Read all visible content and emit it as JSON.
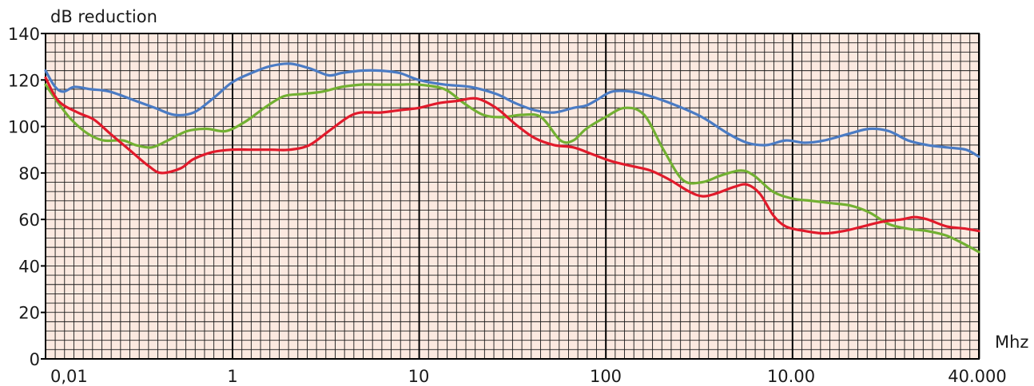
{
  "chart_data": {
    "type": "line",
    "title": "",
    "ylabel": "dB reduction",
    "xlabel": "Mhz",
    "ylim": [
      0,
      140
    ],
    "y_ticks": [
      0,
      20,
      40,
      60,
      80,
      100,
      120,
      140
    ],
    "y_tick_labels": [
      "0",
      "20",
      "40",
      "60",
      "80",
      "100",
      "120",
      "140"
    ],
    "x_scale": "log",
    "x_tick_labels": [
      "0,01",
      "1",
      "10",
      "100",
      "10.00",
      "40.000"
    ],
    "grid": true,
    "background_color": "#fbe9e0",
    "grid_color": "#1a1a1a",
    "series": [
      {
        "color": "#4a7bc4",
        "points": [
          [
            -0.2,
            124
          ],
          [
            -0.05,
            117
          ],
          [
            0.08,
            115
          ],
          [
            0.25,
            117
          ],
          [
            0.5,
            116
          ],
          [
            0.8,
            115
          ],
          [
            1.2,
            111
          ],
          [
            1.5,
            108
          ],
          [
            1.8,
            105
          ],
          [
            2.1,
            106
          ],
          [
            2.4,
            112
          ],
          [
            2.7,
            119
          ],
          [
            3.0,
            123
          ],
          [
            3.3,
            126
          ],
          [
            3.6,
            127
          ],
          [
            3.9,
            125
          ],
          [
            4.2,
            122
          ],
          [
            4.4,
            123
          ],
          [
            4.7,
            124
          ],
          [
            5.0,
            124
          ],
          [
            5.3,
            123
          ],
          [
            5.6,
            120
          ],
          [
            6.0,
            118
          ],
          [
            6.4,
            117
          ],
          [
            6.8,
            114
          ],
          [
            7.1,
            110
          ],
          [
            7.4,
            107
          ],
          [
            7.7,
            106
          ],
          [
            8.0,
            108
          ],
          [
            8.2,
            109
          ],
          [
            8.4,
            112
          ],
          [
            8.6,
            115
          ],
          [
            8.9,
            115
          ],
          [
            9.2,
            113
          ],
          [
            9.6,
            109
          ],
          [
            10.0,
            104
          ],
          [
            10.4,
            97
          ],
          [
            10.7,
            93
          ],
          [
            11.0,
            92
          ],
          [
            11.3,
            94
          ],
          [
            11.6,
            93
          ],
          [
            11.9,
            94
          ],
          [
            12.3,
            97
          ],
          [
            12.6,
            99
          ],
          [
            12.9,
            98
          ],
          [
            13.2,
            94
          ],
          [
            13.5,
            92
          ],
          [
            13.8,
            91
          ],
          [
            14.1,
            90
          ],
          [
            14.3,
            87
          ]
        ]
      },
      {
        "color": "#72b032",
        "points": [
          [
            -0.2,
            118
          ],
          [
            0.0,
            110
          ],
          [
            0.2,
            103
          ],
          [
            0.45,
            97
          ],
          [
            0.7,
            94
          ],
          [
            1.0,
            94
          ],
          [
            1.2,
            92
          ],
          [
            1.45,
            91
          ],
          [
            1.7,
            94
          ],
          [
            2.0,
            98
          ],
          [
            2.3,
            99
          ],
          [
            2.6,
            98
          ],
          [
            2.9,
            102
          ],
          [
            3.2,
            108
          ],
          [
            3.5,
            113
          ],
          [
            3.8,
            114
          ],
          [
            4.1,
            115
          ],
          [
            4.4,
            117
          ],
          [
            4.7,
            118
          ],
          [
            5.0,
            118
          ],
          [
            5.3,
            118
          ],
          [
            5.6,
            118
          ],
          [
            6.0,
            116
          ],
          [
            6.3,
            110
          ],
          [
            6.6,
            105
          ],
          [
            6.9,
            104
          ],
          [
            7.2,
            105
          ],
          [
            7.5,
            104
          ],
          [
            7.8,
            94
          ],
          [
            8.0,
            94
          ],
          [
            8.2,
            99
          ],
          [
            8.5,
            104
          ],
          [
            8.8,
            108
          ],
          [
            9.1,
            105
          ],
          [
            9.4,
            90
          ],
          [
            9.7,
            77
          ],
          [
            10.0,
            76
          ],
          [
            10.3,
            79
          ],
          [
            10.6,
            81
          ],
          [
            10.8,
            79
          ],
          [
            11.1,
            72
          ],
          [
            11.4,
            69
          ],
          [
            11.7,
            68
          ],
          [
            12.0,
            67
          ],
          [
            12.3,
            66
          ],
          [
            12.6,
            63
          ],
          [
            12.9,
            58
          ],
          [
            13.2,
            56
          ],
          [
            13.5,
            55
          ],
          [
            13.8,
            53
          ],
          [
            14.1,
            49
          ],
          [
            14.3,
            46
          ]
        ]
      },
      {
        "color": "#e11a2b",
        "points": [
          [
            -0.2,
            121
          ],
          [
            0.0,
            111
          ],
          [
            0.3,
            106
          ],
          [
            0.55,
            103
          ],
          [
            0.8,
            97
          ],
          [
            1.1,
            90
          ],
          [
            1.4,
            83
          ],
          [
            1.6,
            80
          ],
          [
            1.9,
            82
          ],
          [
            2.1,
            86
          ],
          [
            2.4,
            89
          ],
          [
            2.7,
            90
          ],
          [
            3.0,
            90
          ],
          [
            3.3,
            90
          ],
          [
            3.6,
            90
          ],
          [
            3.9,
            92
          ],
          [
            4.2,
            98
          ],
          [
            4.5,
            104
          ],
          [
            4.7,
            106
          ],
          [
            5.0,
            106
          ],
          [
            5.3,
            107
          ],
          [
            5.6,
            108
          ],
          [
            5.9,
            110
          ],
          [
            6.2,
            111
          ],
          [
            6.5,
            112
          ],
          [
            6.8,
            108
          ],
          [
            7.1,
            101
          ],
          [
            7.4,
            95
          ],
          [
            7.7,
            92
          ],
          [
            8.0,
            91
          ],
          [
            8.3,
            88
          ],
          [
            8.6,
            85
          ],
          [
            8.9,
            83
          ],
          [
            9.2,
            81
          ],
          [
            9.5,
            77
          ],
          [
            9.8,
            72
          ],
          [
            10.0,
            70
          ],
          [
            10.2,
            71
          ],
          [
            10.5,
            74
          ],
          [
            10.7,
            75
          ],
          [
            10.9,
            71
          ],
          [
            11.1,
            62
          ],
          [
            11.3,
            57
          ],
          [
            11.6,
            55
          ],
          [
            11.9,
            54
          ],
          [
            12.2,
            55
          ],
          [
            12.5,
            57
          ],
          [
            12.8,
            59
          ],
          [
            13.1,
            60
          ],
          [
            13.3,
            61
          ],
          [
            13.5,
            60
          ],
          [
            13.8,
            57
          ],
          [
            14.1,
            56
          ],
          [
            14.3,
            55
          ]
        ]
      }
    ]
  }
}
